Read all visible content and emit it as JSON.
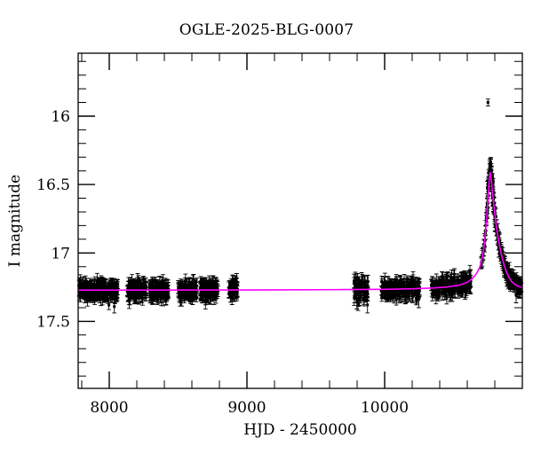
{
  "figure": {
    "background": "#ffffff"
  },
  "chart_data": {
    "type": "scatter",
    "title": "OGLE-2025-BLG-0007",
    "xlabel": "HJD - 2450000",
    "ylabel": "I magnitude",
    "x_range": [
      7774,
      11000
    ],
    "y_range_mag": [
      17.99,
      15.54
    ],
    "y_axis_inverted": true,
    "grid": false,
    "legend": null,
    "x_major_ticks": [
      8000,
      9000,
      10000
    ],
    "x_tick_labels": [
      "8000",
      "9000",
      "10000"
    ],
    "x_minor_step": 200,
    "y_major_ticks": [
      16,
      16.5,
      17,
      17.5
    ],
    "y_tick_labels": [
      "16",
      "16.5",
      "17",
      "17.5"
    ],
    "y_minor_step": 0.1,
    "baseline_mag": 17.27,
    "colors": {
      "data_points": "#000000",
      "model_curve": "#ff00ff",
      "frame": "#000000",
      "background": "#ffffff"
    },
    "event": {
      "t0": 10765,
      "peak_mag": 16.41,
      "outlier_point": {
        "t": 10750,
        "mag": 15.9,
        "err": 0.025
      }
    },
    "model_curve": [
      [
        7774,
        17.272
      ],
      [
        8200,
        17.272
      ],
      [
        8700,
        17.271
      ],
      [
        9200,
        17.27
      ],
      [
        9700,
        17.268
      ],
      [
        10000,
        17.266
      ],
      [
        10200,
        17.262
      ],
      [
        10350,
        17.256
      ],
      [
        10460,
        17.248
      ],
      [
        10540,
        17.236
      ],
      [
        10600,
        17.215
      ],
      [
        10640,
        17.185
      ],
      [
        10668,
        17.15
      ],
      [
        10690,
        17.105
      ],
      [
        10706,
        17.05
      ],
      [
        10719,
        16.975
      ],
      [
        10729,
        16.89
      ],
      [
        10737,
        16.8
      ],
      [
        10744,
        16.7
      ],
      [
        10750,
        16.61
      ],
      [
        10755,
        16.54
      ],
      [
        10759,
        16.48
      ],
      [
        10762,
        16.44
      ],
      [
        10765,
        16.412
      ],
      [
        10768,
        16.415
      ],
      [
        10771,
        16.435
      ],
      [
        10775,
        16.47
      ],
      [
        10780,
        16.52
      ],
      [
        10786,
        16.58
      ],
      [
        10793,
        16.65
      ],
      [
        10801,
        16.725
      ],
      [
        10811,
        16.805
      ],
      [
        10823,
        16.885
      ],
      [
        10837,
        16.96
      ],
      [
        10852,
        17.03
      ],
      [
        10868,
        17.09
      ],
      [
        10885,
        17.14
      ],
      [
        10903,
        17.18
      ],
      [
        10923,
        17.21
      ],
      [
        10945,
        17.23
      ],
      [
        10968,
        17.243
      ],
      [
        11000,
        17.252
      ]
    ],
    "observing_seasons": [
      {
        "id": "season-2018",
        "t_start": 7778,
        "t_end": 8062,
        "n_points": 240,
        "scatter_sigma": 0.028,
        "gaps": []
      },
      {
        "id": "season-2019",
        "t_start": 8130,
        "t_end": 8428,
        "n_points": 260,
        "scatter_sigma": 0.028,
        "gaps": [
          [
            8270,
            8292
          ]
        ]
      },
      {
        "id": "season-2020",
        "t_start": 8500,
        "t_end": 8790,
        "n_points": 260,
        "scatter_sigma": 0.028,
        "gaps": [
          [
            8635,
            8660
          ]
        ]
      },
      {
        "id": "season-2020b",
        "t_start": 8868,
        "t_end": 8932,
        "n_points": 55,
        "scatter_sigma": 0.028,
        "gaps": []
      },
      {
        "id": "season-2022",
        "t_start": 9776,
        "t_end": 9882,
        "n_points": 60,
        "scatter_sigma": 0.048,
        "gaps": []
      },
      {
        "id": "season-2023",
        "t_start": 9970,
        "t_end": 10255,
        "n_points": 200,
        "scatter_sigma": 0.03,
        "gaps": []
      },
      {
        "id": "season-2024",
        "t_start": 10338,
        "t_end": 10625,
        "n_points": 200,
        "scatter_sigma": 0.03,
        "gaps": []
      }
    ],
    "rise_nights": {
      "nights": [
        10703,
        10709,
        10715,
        10721,
        10727,
        10733,
        10739,
        10745
      ],
      "points_per_night": 3,
      "scatter_sigma": 0.02
    },
    "peak_cluster": {
      "t_start": 10742,
      "t_end": 10793,
      "n_points": 44,
      "scatter_sigma": 0.035,
      "mag_offset": -0.04
    },
    "decline_sampling": {
      "t_start": 10772,
      "t_end": 10995,
      "n_points": 175,
      "scatter_sigma": 0.025
    },
    "error_bar_mag_min": 0.03,
    "error_bar_mag_spread": 0.032,
    "random_seed": 42
  }
}
